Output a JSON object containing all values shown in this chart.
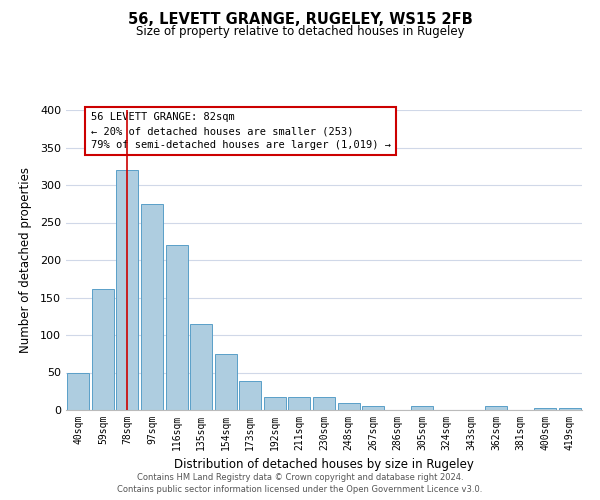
{
  "title": "56, LEVETT GRANGE, RUGELEY, WS15 2FB",
  "subtitle": "Size of property relative to detached houses in Rugeley",
  "xlabel": "Distribution of detached houses by size in Rugeley",
  "ylabel": "Number of detached properties",
  "bar_labels": [
    "40sqm",
    "59sqm",
    "78sqm",
    "97sqm",
    "116sqm",
    "135sqm",
    "154sqm",
    "173sqm",
    "192sqm",
    "211sqm",
    "230sqm",
    "248sqm",
    "267sqm",
    "286sqm",
    "305sqm",
    "324sqm",
    "343sqm",
    "362sqm",
    "381sqm",
    "400sqm",
    "419sqm"
  ],
  "bar_heights": [
    49,
    162,
    320,
    275,
    220,
    115,
    75,
    39,
    18,
    18,
    18,
    10,
    6,
    0,
    5,
    0,
    0,
    5,
    0,
    3,
    3
  ],
  "bar_color": "#aecde0",
  "bar_edge_color": "#5a9fc8",
  "vline_x": 2,
  "vline_color": "#cc0000",
  "ylim": [
    0,
    400
  ],
  "yticks": [
    0,
    50,
    100,
    150,
    200,
    250,
    300,
    350,
    400
  ],
  "annotation_title": "56 LEVETT GRANGE: 82sqm",
  "annotation_line1": "← 20% of detached houses are smaller (253)",
  "annotation_line2": "79% of semi-detached houses are larger (1,019) →",
  "annotation_box_color": "#ffffff",
  "annotation_box_edge": "#cc0000",
  "footer1": "Contains HM Land Registry data © Crown copyright and database right 2024.",
  "footer2": "Contains public sector information licensed under the Open Government Licence v3.0.",
  "background_color": "#ffffff",
  "grid_color": "#d0d8e8"
}
